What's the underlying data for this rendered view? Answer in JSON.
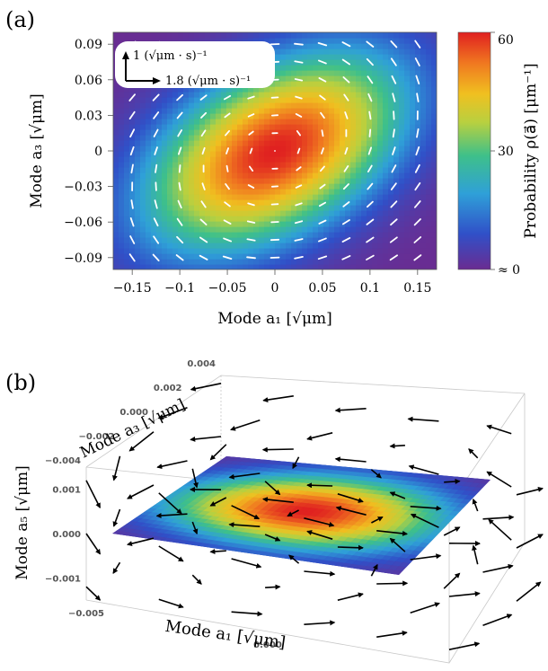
{
  "panel_a": {
    "label": "(a)",
    "xlabel": "Mode a₁ [√μm]",
    "ylabel": "Mode a₃ [√μm]",
    "scale_key": {
      "vertical": "1 (√μm · s)⁻¹",
      "horizontal": "1.8 (√μm · s)⁻¹"
    },
    "colorbar": {
      "label": "Probability ρ(a⃗) [μm⁻¹]",
      "ticks": [
        {
          "value": 60,
          "label": "60"
        },
        {
          "value": 30,
          "label": "30"
        },
        {
          "value": 0,
          "label": "≈ 0"
        }
      ]
    }
  },
  "panel_b": {
    "label": "(b)",
    "xlabel": "Mode a₁ [√μm]",
    "ylabel": "Mode a₃ [√μm]",
    "zlabel": "Mode a₅ [√μm]"
  },
  "chart_data": [
    {
      "type": "heatmap",
      "subtype": "probability density with velocity vector field",
      "x_name": "a1",
      "y_name": "a3",
      "xlim": [
        -0.17,
        0.17
      ],
      "ylim": [
        -0.1,
        0.1
      ],
      "xticks": [
        -0.15,
        -0.1,
        -0.05,
        0,
        0.05,
        0.1,
        0.15
      ],
      "xtick_labels": [
        "−0.15",
        "−0.1",
        "−0.05",
        "0",
        "0.05",
        "0.1",
        "0.15"
      ],
      "yticks": [
        -0.09,
        -0.06,
        -0.03,
        0,
        0.03,
        0.06,
        0.09
      ],
      "ytick_labels": [
        "−0.09",
        "−0.06",
        "−0.03",
        "0",
        "0.03",
        "0.06",
        "0.09"
      ],
      "density": {
        "peak_location": [
          0.0,
          0.0
        ],
        "peak_value": 60,
        "min_value": 0,
        "sigma_x": 0.09,
        "sigma_y": 0.055,
        "correlation": 0.45
      },
      "vector_field": {
        "rotation": "counterclockwise",
        "grid_x": [
          -0.15,
          -0.125,
          -0.1,
          -0.075,
          -0.05,
          -0.025,
          0,
          0.025,
          0.05,
          0.075,
          0.1,
          0.125,
          0.15
        ],
        "grid_y": [
          -0.09,
          -0.075,
          -0.06,
          -0.045,
          -0.03,
          -0.015,
          0,
          0.015,
          0.03,
          0.045,
          0.06,
          0.075,
          0.09
        ],
        "color": "#ffffff"
      },
      "colormap": [
        "#6a2c91",
        "#3050c8",
        "#2fa0d8",
        "#3ec08a",
        "#b8d040",
        "#f0c020",
        "#f07820",
        "#e02020"
      ]
    },
    {
      "type": "surface-3d",
      "x_name": "a1",
      "y_name": "a3",
      "z_name": "a5",
      "xlim": [
        -0.005,
        0.005
      ],
      "ylim": [
        -0.004,
        0.004
      ],
      "zlim": [
        -0.0015,
        0.0015
      ],
      "xticks": [
        -0.005,
        0,
        0.005
      ],
      "xtick_labels": [
        "−0.005",
        "0.000",
        "0.005"
      ],
      "yticks": [
        -0.004,
        -0.002,
        0,
        0.002,
        0.004
      ],
      "ytick_labels": [
        "−0.004",
        "−0.002",
        "0.000",
        "0.002",
        "0.004"
      ],
      "zticks": [
        -0.001,
        0,
        0.001
      ],
      "ztick_labels": [
        "−0.001",
        "0.000",
        "0.001"
      ],
      "surface": "probability density on plane a5 = 0",
      "vector_field": {
        "color": "#000000",
        "grid_x": [
          -0.005,
          -0.003,
          -0.001,
          0.001,
          0.003,
          0.005
        ],
        "grid_y": [
          -0.004,
          -0.002,
          0,
          0.002,
          0.004
        ],
        "grid_z": [
          -0.0012,
          0,
          0.0012
        ]
      }
    }
  ]
}
